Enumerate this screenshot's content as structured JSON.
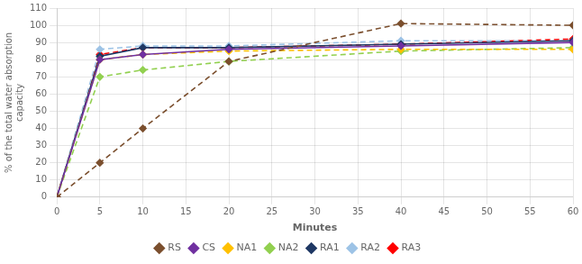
{
  "chart_data": {
    "type": "line",
    "xlabel": "Minutes",
    "ylabel": "% of the total water absorption\ncapacity",
    "x": [
      0,
      5,
      10,
      20,
      40,
      60
    ],
    "series": [
      {
        "name": "RS",
        "color": "#7B4F2E",
        "line_style": "dashed",
        "marker": "diamond",
        "values": [
          0,
          20,
          40,
          79,
          101,
          100
        ]
      },
      {
        "name": "CS",
        "color": "#7030A0",
        "line_style": "solid",
        "marker": "diamond",
        "values": [
          0,
          80,
          83,
          86,
          88,
          90
        ]
      },
      {
        "name": "NA1",
        "color": "#FFC000",
        "line_style": "dashed",
        "marker": "diamond",
        "values": [
          0,
          80,
          83,
          85,
          86,
          86
        ]
      },
      {
        "name": "NA2",
        "color": "#92D050",
        "line_style": "dashed",
        "marker": "diamond",
        "values": [
          0,
          70,
          74,
          79,
          85,
          87
        ]
      },
      {
        "name": "RA1",
        "color": "#1F3864",
        "line_style": "solid",
        "marker": "diamond",
        "values": [
          0,
          82,
          87,
          87,
          89,
          91
        ]
      },
      {
        "name": "RA2",
        "color": "#9DC3E6",
        "line_style": "dashed",
        "marker": "diamond",
        "values": [
          0,
          86,
          88,
          88,
          91,
          91
        ]
      },
      {
        "name": "RA3",
        "color": "#FF0000",
        "line_style": "dashed",
        "marker": "diamond",
        "values": [
          0,
          83,
          87,
          87,
          89,
          92
        ]
      }
    ],
    "xlim": [
      0,
      60
    ],
    "ylim": [
      0,
      110
    ],
    "xticks": [
      0,
      5,
      10,
      15,
      20,
      25,
      30,
      35,
      40,
      45,
      50,
      55,
      60
    ],
    "yticks": [
      0,
      10,
      20,
      30,
      40,
      50,
      60,
      70,
      80,
      90,
      100,
      110
    ],
    "grid": true,
    "legend": "bottom"
  }
}
